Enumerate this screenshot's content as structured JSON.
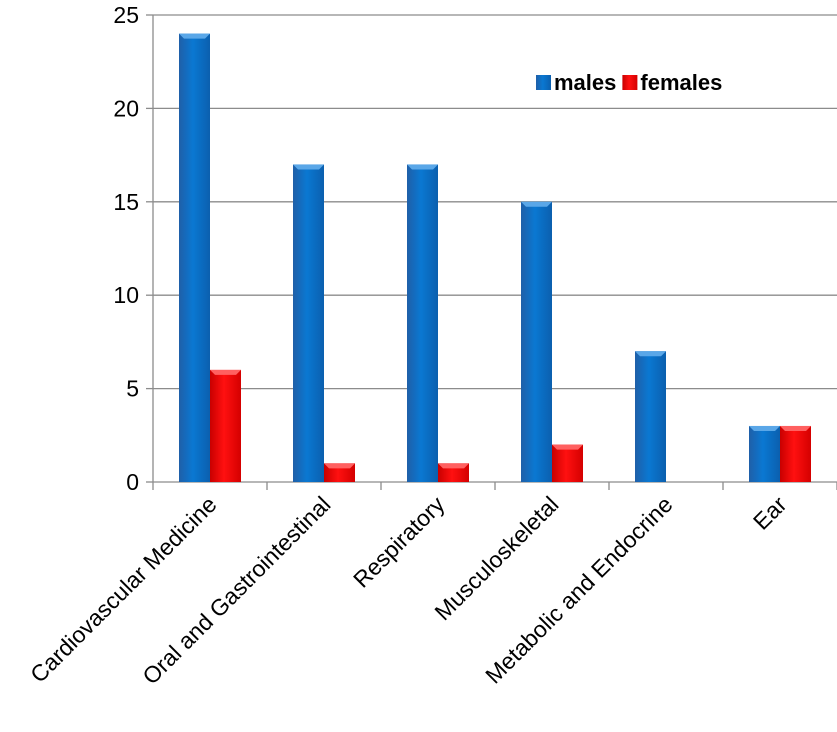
{
  "chart_data": {
    "type": "bar",
    "title": "",
    "xlabel": "",
    "ylabel": "",
    "categories": [
      "Cardiovascular Medicine",
      "Oral and Gastrointestinal",
      "Respiratory",
      "Musculoskeletal",
      "Metabolic and Endocrine",
      "Ear"
    ],
    "series": [
      {
        "name": "males",
        "values": [
          24,
          17,
          17,
          15,
          7,
          3
        ],
        "color": "#0070C0"
      },
      {
        "name": "females",
        "values": [
          6,
          1,
          1,
          2,
          0,
          3
        ],
        "color": "#EE0000"
      }
    ],
    "ylim": [
      0,
      25
    ],
    "yticks": [
      0,
      5,
      10,
      15,
      20,
      25
    ],
    "grid": true,
    "legend": "top-right"
  }
}
